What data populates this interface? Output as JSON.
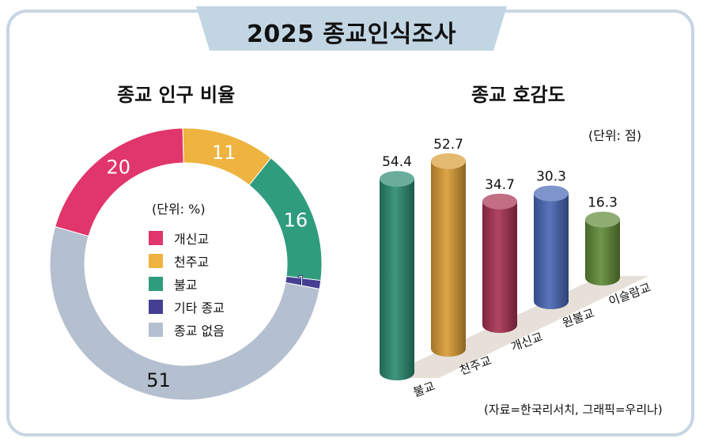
{
  "header": {
    "title": "2025 종교인식조사"
  },
  "chart_data": [
    {
      "type": "pie",
      "title": "종교 인구 비율",
      "unit_label": "(단위: %)",
      "slices": [
        {
          "label": "개신교",
          "value": 20,
          "value_label": "20",
          "color": "#e0366b"
        },
        {
          "label": "천주교",
          "value": 11,
          "value_label": "11",
          "color": "#efb340"
        },
        {
          "label": "불교",
          "value": 16,
          "value_label": "16",
          "color": "#2f9c7e"
        },
        {
          "label": "기타 종교",
          "value": 1,
          "value_label": "1",
          "color": "#453f93"
        },
        {
          "label": "종교 없음",
          "value": 51,
          "value_label": "51",
          "color": "#b4bfcf"
        }
      ]
    },
    {
      "type": "bar",
      "title": "종교 호감도",
      "unit_label": "(단위: 점)",
      "categories": [
        "불교",
        "천주교",
        "개신교",
        "원불교",
        "이슬람교"
      ],
      "values": [
        54.4,
        52.7,
        34.7,
        30.3,
        16.3
      ],
      "value_labels": [
        "54.4",
        "52.7",
        "34.7",
        "30.3",
        "16.3"
      ],
      "colors": [
        "#2a8a6f",
        "#d99b32",
        "#a83051",
        "#4766b5",
        "#5f8a36"
      ]
    }
  ],
  "source": "(자료=한국리서치, 그래픽=우리나)"
}
